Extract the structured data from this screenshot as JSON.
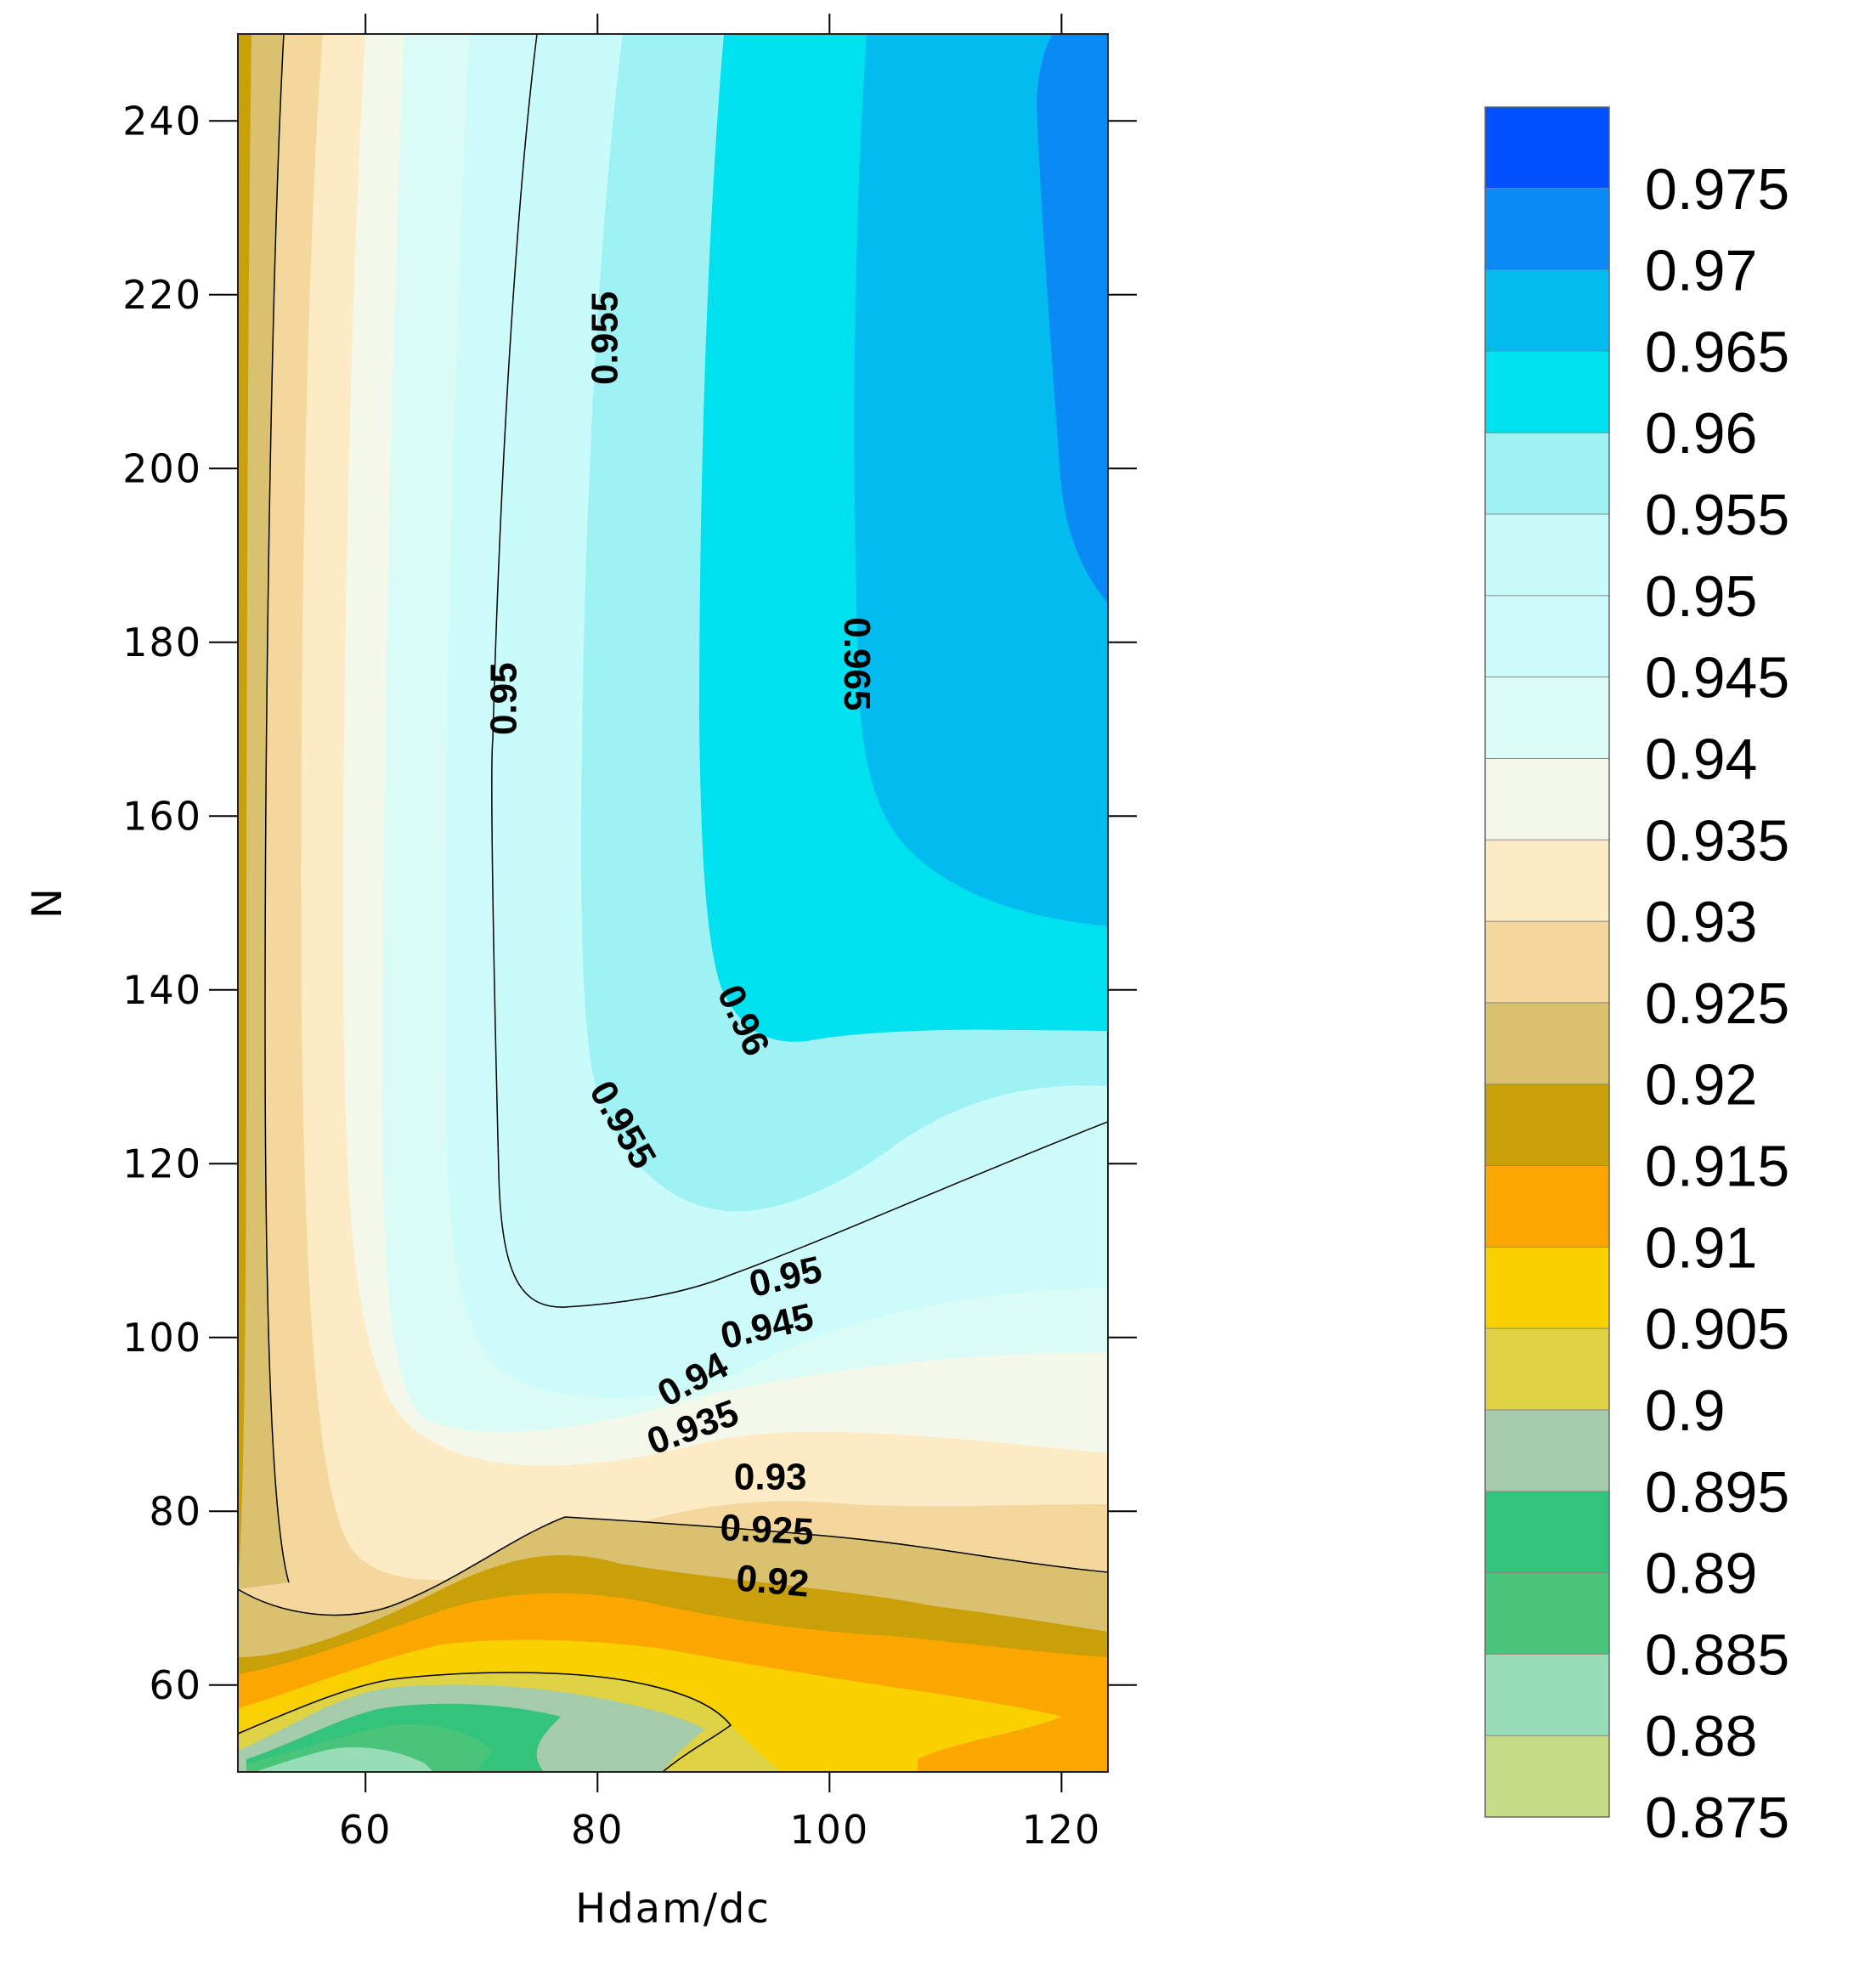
{
  "chart_data": {
    "type": "contour",
    "title": "",
    "xlabel": "Hdam/dc",
    "ylabel": "N",
    "xlim": [
      49,
      124
    ],
    "ylim": [
      50,
      250
    ],
    "xticks": [
      60,
      80,
      100,
      120
    ],
    "yticks": [
      60,
      80,
      100,
      120,
      140,
      160,
      180,
      200,
      220,
      240
    ],
    "xtick_labels": [
      "60",
      "80",
      "100",
      "120"
    ],
    "ytick_labels": [
      "60",
      "80",
      "100",
      "120",
      "140",
      "160",
      "180",
      "200",
      "220",
      "240"
    ],
    "legend_levels": [
      "0.975",
      "0.97",
      "0.965",
      "0.96",
      "0.955",
      "0.95",
      "0.945",
      "0.94",
      "0.935",
      "0.93",
      "0.925",
      "0.92",
      "0.915",
      "0.91",
      "0.905",
      "0.9",
      "0.895",
      "0.89",
      "0.885",
      "0.88",
      "0.875"
    ],
    "legend_colors": [
      "#0050ff",
      "#0a8af5",
      "#04bbef",
      "#00e1ef",
      "#9ff2f4",
      "#c8fbfa",
      "#cdfbf9",
      "#dbfcf6",
      "#f4f8ea",
      "#fcebc5",
      "#f4d79d",
      "#dac170",
      "#caa009",
      "#fba601",
      "#f9d100",
      "#dfd244",
      "#a4ccaa",
      "#33c37a",
      "#48c47b",
      "#97ddb5",
      "#c5db85"
    ],
    "contour_labels": [
      {
        "text": "0.955",
        "x": 80.6,
        "y": 215,
        "angle": -90
      },
      {
        "text": "0.95",
        "x": 71.9,
        "y": 173.5,
        "angle": -90
      },
      {
        "text": "0.965",
        "x": 102.4,
        "y": 177.5,
        "angle": 90
      },
      {
        "text": "0.96",
        "x": 92.6,
        "y": 136.5,
        "angle": 65
      },
      {
        "text": "0.955",
        "x": 82.2,
        "y": 124.5,
        "angle": 60
      },
      {
        "text": "0.95",
        "x": 96.2,
        "y": 107,
        "angle": -13
      },
      {
        "text": "0.945",
        "x": 94.6,
        "y": 101.3,
        "angle": -13
      },
      {
        "text": "0.94",
        "x": 88.2,
        "y": 95.2,
        "angle": -28
      },
      {
        "text": "0.935",
        "x": 88.2,
        "y": 89.7,
        "angle": -20
      },
      {
        "text": "0.93",
        "x": 94.9,
        "y": 84,
        "angle": 0
      },
      {
        "text": "0.925",
        "x": 94.6,
        "y": 77.9,
        "angle": 3
      },
      {
        "text": "0.92",
        "x": 95.1,
        "y": 72,
        "angle": 5
      }
    ]
  }
}
